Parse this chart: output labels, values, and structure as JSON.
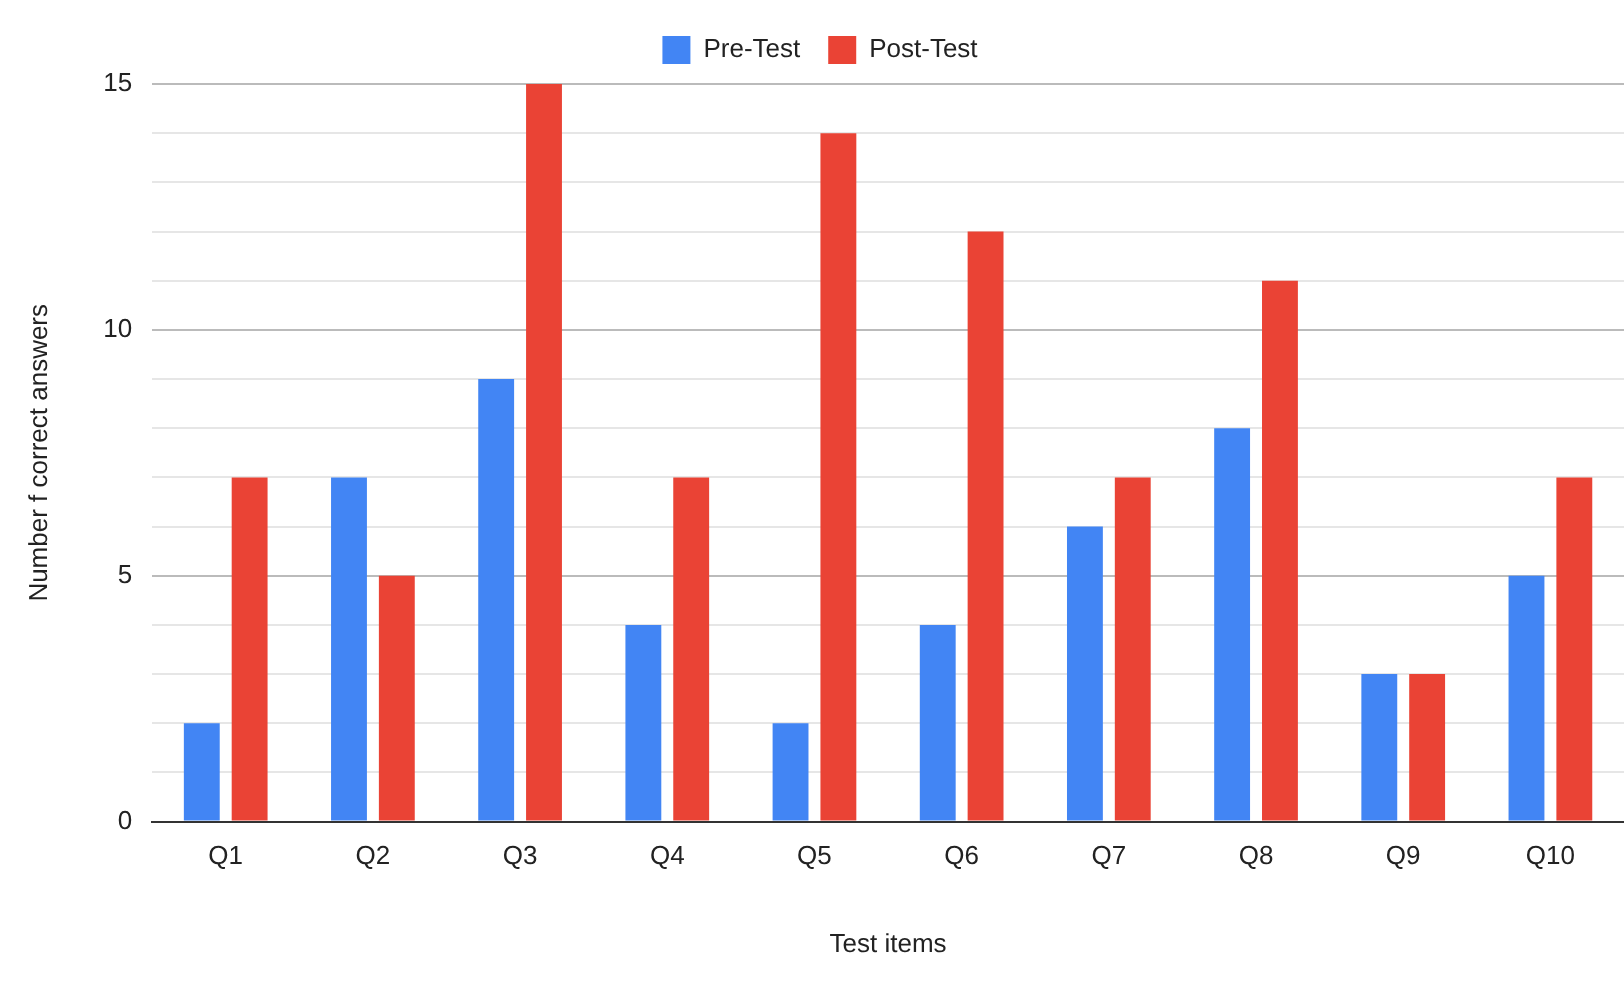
{
  "chart_data": {
    "type": "bar",
    "xlabel": "Test items",
    "ylabel": "Number f correct answers",
    "categories": [
      "Q1",
      "Q2",
      "Q3",
      "Q4",
      "Q5",
      "Q6",
      "Q7",
      "Q8",
      "Q9",
      "Q10"
    ],
    "series": [
      {
        "name": "Pre-Test",
        "color": "#4285f4",
        "values": [
          2,
          7,
          9,
          4,
          2,
          4,
          6,
          8,
          3,
          5
        ]
      },
      {
        "name": "Post-Test",
        "color": "#ea4335",
        "values": [
          7,
          5,
          15,
          7,
          14,
          12,
          7,
          11,
          3,
          7
        ]
      }
    ],
    "ylim": [
      0,
      15
    ],
    "yticks": [
      0,
      {
        "value": 1,
        "label": null
      },
      {
        "value": 2,
        "label": null
      },
      {
        "value": 3,
        "label": null
      },
      {
        "value": 4,
        "label": null
      },
      5,
      {
        "value": 6,
        "label": null
      },
      {
        "value": 7,
        "label": null
      },
      {
        "value": 8,
        "label": null
      },
      {
        "value": 9,
        "label": null
      },
      10,
      {
        "value": 11,
        "label": null
      },
      {
        "value": 12,
        "label": null
      },
      {
        "value": 13,
        "label": null
      },
      {
        "value": 14,
        "label": null
      },
      15
    ],
    "grid": "y",
    "legend": "top"
  }
}
